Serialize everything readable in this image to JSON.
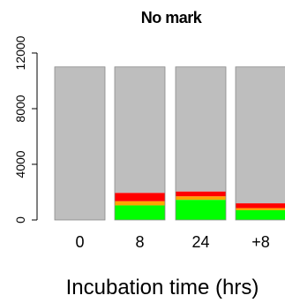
{
  "chart_data": {
    "type": "bar",
    "stacked": true,
    "title": "No mark",
    "xlabel": "Incubation time (hrs)",
    "ylabel": "",
    "categories": [
      "0",
      "8",
      "24",
      "+8"
    ],
    "yticks": [
      "0",
      "4000",
      "8000",
      "12000"
    ],
    "ylim": [
      0,
      12000
    ],
    "grid": false,
    "legend": "none",
    "series": [
      {
        "color": "#00ff00",
        "values": [
          0,
          1050,
          1450,
          700
        ]
      },
      {
        "color": "#ffa500",
        "values": [
          0,
          300,
          250,
          150
        ]
      },
      {
        "color": "#ff0000",
        "values": [
          0,
          600,
          350,
          350
        ]
      },
      {
        "color": "#bebebe",
        "values": [
          11000,
          9050,
          8950,
          9800
        ]
      }
    ]
  }
}
